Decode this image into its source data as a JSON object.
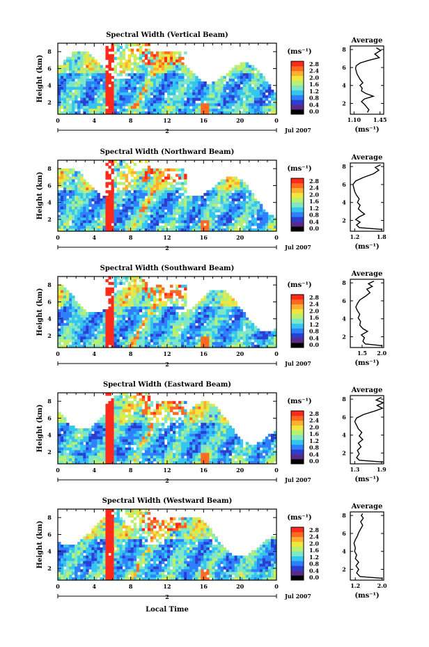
{
  "chart_data": [
    {
      "type": "heatmap",
      "title": "Spectral Width (Vertical Beam)",
      "xlabel": "",
      "ylabel": "Height (km)",
      "x_ticks": [
        "0",
        "4",
        "8",
        "12",
        "16",
        "20",
        "0"
      ],
      "y_ticks": [
        "2",
        "4",
        "6",
        "8"
      ],
      "date_labels": [
        "2",
        "Jul 2007"
      ],
      "colorbar": {
        "unit": "(ms⁻¹)",
        "ticks": [
          "0.0",
          "0.4",
          "0.8",
          "1.2",
          "1.6",
          "2.0",
          "2.4",
          "2.8"
        ]
      },
      "average": {
        "title": "Average",
        "xlabel": "(ms⁻¹)",
        "x_ticks": [
          "1.10",
          "1.45"
        ],
        "y_ticks": [
          "2",
          "4",
          "6",
          "8"
        ],
        "xlim": [
          1.05,
          1.5
        ],
        "profile": [
          [
            1.28,
            1.0
          ],
          [
            1.3,
            1.3
          ],
          [
            1.27,
            1.6
          ],
          [
            1.24,
            1.9
          ],
          [
            1.2,
            2.2
          ],
          [
            1.24,
            2.5
          ],
          [
            1.36,
            2.8
          ],
          [
            1.26,
            3.1
          ],
          [
            1.2,
            3.4
          ],
          [
            1.21,
            3.7
          ],
          [
            1.18,
            4.0
          ],
          [
            1.22,
            4.3
          ],
          [
            1.18,
            4.7
          ],
          [
            1.16,
            5.0
          ],
          [
            1.14,
            5.3
          ],
          [
            1.13,
            5.6
          ],
          [
            1.12,
            5.9
          ],
          [
            1.13,
            6.2
          ],
          [
            1.18,
            6.5
          ],
          [
            1.3,
            6.8
          ],
          [
            1.44,
            7.1
          ],
          [
            1.38,
            7.5
          ],
          [
            1.46,
            7.9
          ],
          [
            1.4,
            8.2
          ]
        ]
      }
    },
    {
      "type": "heatmap",
      "title": "Spectral Width (Northward Beam)",
      "xlabel": "",
      "ylabel": "Height (km)",
      "x_ticks": [
        "0",
        "4",
        "8",
        "12",
        "16",
        "20",
        "0"
      ],
      "y_ticks": [
        "2",
        "4",
        "6",
        "8"
      ],
      "date_labels": [
        "2",
        "Jul 2007"
      ],
      "colorbar": {
        "unit": "(ms⁻¹)",
        "ticks": [
          "0.0",
          "0.4",
          "0.8",
          "1.2",
          "1.6",
          "2.0",
          "2.4",
          "2.8"
        ]
      },
      "average": {
        "title": "Average",
        "xlabel": "(ms⁻¹)",
        "x_ticks": [
          "1.2",
          "1.8"
        ],
        "y_ticks": [
          "2",
          "4",
          "6",
          "8"
        ],
        "xlim": [
          1.1,
          1.85
        ],
        "profile": [
          [
            1.82,
            1.0
          ],
          [
            1.3,
            1.2
          ],
          [
            1.24,
            1.5
          ],
          [
            1.32,
            1.8
          ],
          [
            1.22,
            2.1
          ],
          [
            1.3,
            2.4
          ],
          [
            1.42,
            2.7
          ],
          [
            1.34,
            3.0
          ],
          [
            1.28,
            3.3
          ],
          [
            1.32,
            3.7
          ],
          [
            1.26,
            4.0
          ],
          [
            1.3,
            4.4
          ],
          [
            1.24,
            4.8
          ],
          [
            1.2,
            5.2
          ],
          [
            1.18,
            5.6
          ],
          [
            1.16,
            6.0
          ],
          [
            1.22,
            6.4
          ],
          [
            1.4,
            6.8
          ],
          [
            1.62,
            7.2
          ],
          [
            1.74,
            7.6
          ],
          [
            1.66,
            7.9
          ],
          [
            1.78,
            8.2
          ]
        ]
      }
    },
    {
      "type": "heatmap",
      "title": "Spectral Width (Southward Beam)",
      "xlabel": "",
      "ylabel": "Height (km)",
      "x_ticks": [
        "0",
        "4",
        "8",
        "12",
        "16",
        "20",
        "0"
      ],
      "y_ticks": [
        "2",
        "4",
        "6",
        "8"
      ],
      "date_labels": [
        "2",
        "Jul 2007"
      ],
      "colorbar": {
        "unit": "(ms⁻¹)",
        "ticks": [
          "0.0",
          "0.4",
          "0.8",
          "1.2",
          "1.6",
          "2.0",
          "2.4",
          "2.8"
        ]
      },
      "average": {
        "title": "Average",
        "xlabel": "(ms⁻¹)",
        "x_ticks": [
          "1.5",
          "2.0"
        ],
        "y_ticks": [
          "2",
          "4",
          "6",
          "8"
        ],
        "xlim": [
          1.2,
          2.05
        ],
        "profile": [
          [
            2.02,
            1.0
          ],
          [
            1.58,
            1.2
          ],
          [
            1.52,
            1.5
          ],
          [
            1.56,
            1.9
          ],
          [
            1.48,
            2.2
          ],
          [
            1.64,
            2.6
          ],
          [
            1.52,
            2.9
          ],
          [
            1.44,
            3.3
          ],
          [
            1.46,
            3.7
          ],
          [
            1.4,
            4.1
          ],
          [
            1.44,
            4.5
          ],
          [
            1.38,
            4.9
          ],
          [
            1.34,
            5.3
          ],
          [
            1.38,
            5.7
          ],
          [
            1.44,
            6.1
          ],
          [
            1.58,
            6.5
          ],
          [
            1.7,
            6.9
          ],
          [
            1.62,
            7.3
          ],
          [
            1.76,
            7.6
          ],
          [
            1.66,
            7.9
          ],
          [
            1.8,
            8.2
          ]
        ]
      }
    },
    {
      "type": "heatmap",
      "title": "Spectral Width (Eastward Beam)",
      "xlabel": "",
      "ylabel": "Height (km)",
      "x_ticks": [
        "0",
        "4",
        "8",
        "12",
        "16",
        "20",
        "0"
      ],
      "y_ticks": [
        "2",
        "4",
        "6",
        "8"
      ],
      "date_labels": [
        "2",
        "Jul 2007"
      ],
      "colorbar": {
        "unit": "(ms⁻¹)",
        "ticks": [
          "0.0",
          "0.4",
          "0.8",
          "1.2",
          "1.6",
          "2.0",
          "2.4",
          "2.8"
        ]
      },
      "average": {
        "title": "Average",
        "xlabel": "(ms⁻¹)",
        "x_ticks": [
          "1.3",
          "1.9"
        ],
        "y_ticks": [
          "2",
          "4",
          "6",
          "8"
        ],
        "xlim": [
          1.2,
          1.95
        ],
        "profile": [
          [
            1.94,
            1.0
          ],
          [
            1.4,
            1.2
          ],
          [
            1.34,
            1.5
          ],
          [
            1.4,
            1.9
          ],
          [
            1.36,
            2.3
          ],
          [
            1.44,
            2.7
          ],
          [
            1.38,
            3.1
          ],
          [
            1.48,
            3.5
          ],
          [
            1.4,
            3.9
          ],
          [
            1.46,
            4.3
          ],
          [
            1.38,
            4.7
          ],
          [
            1.34,
            5.1
          ],
          [
            1.3,
            5.5
          ],
          [
            1.34,
            5.9
          ],
          [
            1.5,
            6.3
          ],
          [
            1.76,
            6.7
          ],
          [
            1.92,
            7.0
          ],
          [
            1.8,
            7.3
          ],
          [
            1.94,
            7.6
          ],
          [
            1.78,
            7.9
          ],
          [
            1.9,
            8.2
          ]
        ]
      }
    },
    {
      "type": "heatmap",
      "title": "Spectral Width (Westward Beam)",
      "xlabel": "Local Time",
      "ylabel": "Height (km)",
      "x_ticks": [
        "0",
        "4",
        "8",
        "12",
        "16",
        "20",
        "0"
      ],
      "y_ticks": [
        "2",
        "4",
        "6",
        "8"
      ],
      "date_labels": [
        "2",
        "Jul 2007"
      ],
      "colorbar": {
        "unit": "(ms⁻¹)",
        "ticks": [
          "0.0",
          "0.4",
          "0.8",
          "1.2",
          "1.6",
          "2.0",
          "2.4",
          "2.8"
        ]
      },
      "average": {
        "title": "Average",
        "xlabel": "(ms⁻¹)",
        "x_ticks": [
          "1.2",
          "2.0"
        ],
        "y_ticks": [
          "2",
          "4",
          "6",
          "8"
        ],
        "xlim": [
          1.05,
          2.05
        ],
        "profile": [
          [
            2.02,
            1.0
          ],
          [
            1.34,
            1.2
          ],
          [
            1.24,
            1.6
          ],
          [
            1.3,
            2.0
          ],
          [
            1.22,
            2.4
          ],
          [
            1.3,
            2.8
          ],
          [
            1.2,
            3.2
          ],
          [
            1.24,
            3.6
          ],
          [
            1.18,
            4.0
          ],
          [
            1.2,
            4.4
          ],
          [
            1.16,
            4.9
          ],
          [
            1.2,
            5.3
          ],
          [
            1.26,
            5.7
          ],
          [
            1.3,
            6.1
          ],
          [
            1.36,
            6.5
          ],
          [
            1.42,
            6.9
          ],
          [
            1.36,
            7.3
          ],
          [
            1.44,
            7.7
          ],
          [
            1.38,
            8.0
          ],
          [
            1.42,
            8.2
          ]
        ]
      }
    }
  ],
  "colors": {
    "scale": [
      "#000000",
      "#5a2a8a",
      "#2a3fd0",
      "#2f80ff",
      "#35c6f0",
      "#7fe6c8",
      "#b8f070",
      "#f0e640",
      "#ffb030",
      "#ff6a20",
      "#ff2a1a"
    ]
  }
}
